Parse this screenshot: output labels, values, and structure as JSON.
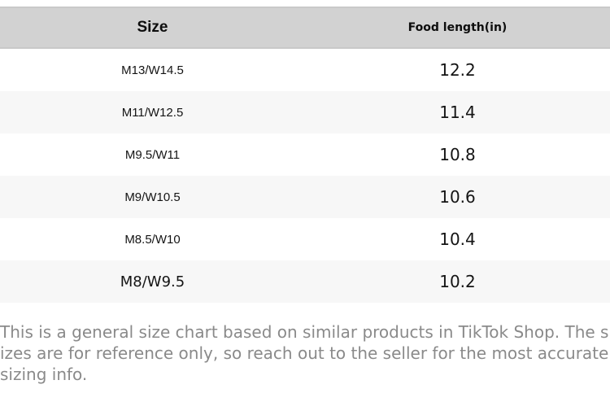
{
  "table": {
    "columns": {
      "size_label": "Size",
      "length_label": "Food length(in)"
    },
    "rows": [
      {
        "size": "M13/W14.5",
        "length": "12.2"
      },
      {
        "size": "M11/W12.5",
        "length": "11.4"
      },
      {
        "size": "M9.5/W11",
        "length": "10.8"
      },
      {
        "size": "M9/W10.5",
        "length": "10.6"
      },
      {
        "size": "M8.5/W10",
        "length": "10.4"
      },
      {
        "size": "M8/W9.5",
        "length": "10.2"
      }
    ]
  },
  "disclaimer": {
    "text": "This is a general size chart based on similar products in TikTok Shop. The sizes are for reference only, so reach out to the seller for the most accurate sizing info."
  },
  "colors": {
    "header_bg": "#d2d2d2",
    "header_border": "#c9c9c9",
    "row_alt_bg": "#f7f7f7",
    "table_text": "#141414",
    "disclaimer_text": "#8a8a8a"
  }
}
